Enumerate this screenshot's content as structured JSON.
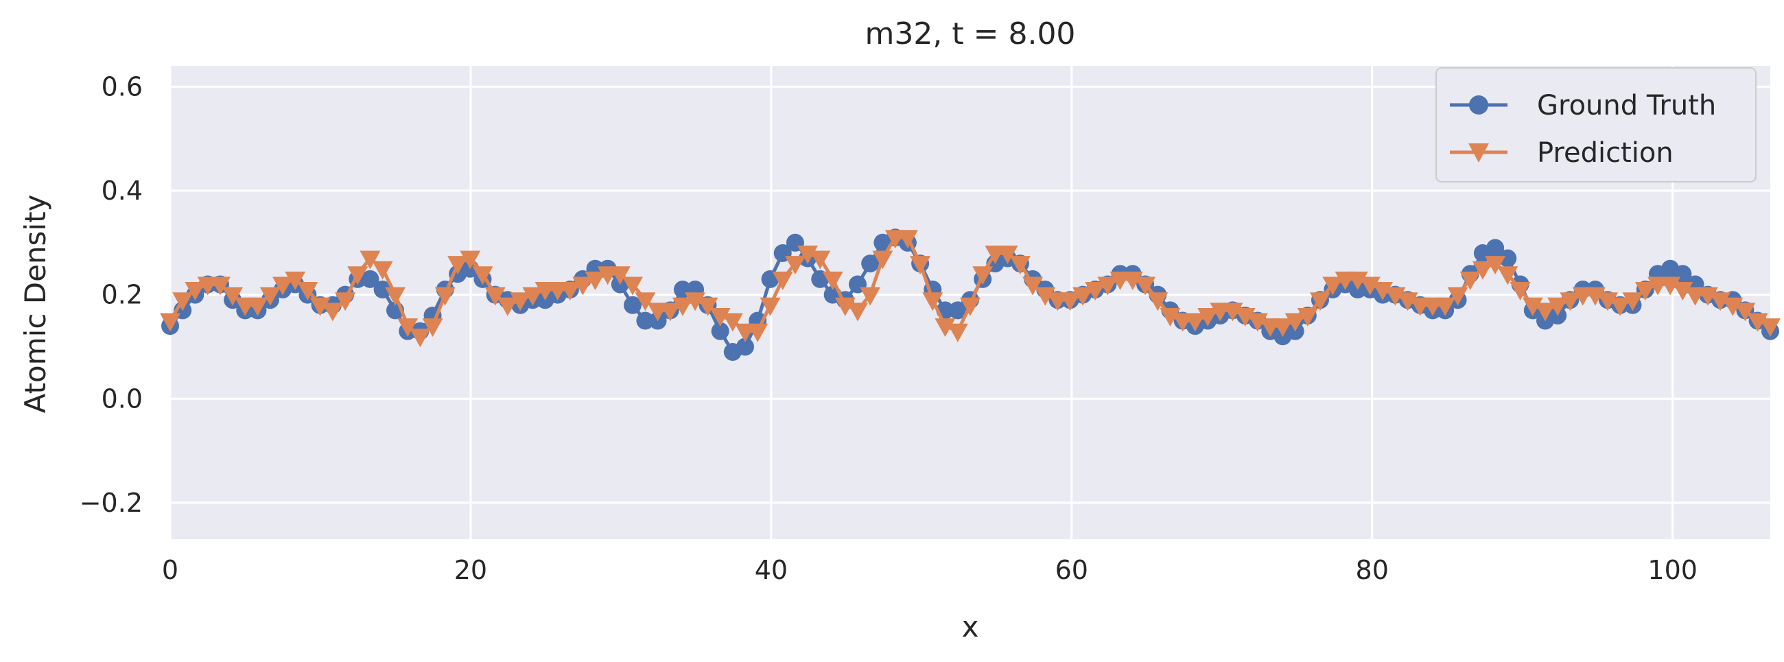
{
  "chart_data": {
    "type": "line",
    "title": "m32, t = 8.00",
    "xlabel": "x",
    "ylabel": "Atomic Density",
    "xlim": [
      0,
      106.5
    ],
    "ylim": [
      -0.27,
      0.64
    ],
    "xticks": [
      0,
      20,
      40,
      60,
      80,
      100
    ],
    "xtick_labels": [
      "0",
      "20",
      "40",
      "60",
      "80",
      "100"
    ],
    "yticks": [
      -0.2,
      0.0,
      0.2,
      0.4,
      0.6
    ],
    "ytick_labels": [
      "−0.2",
      "0.0",
      "0.2",
      "0.4",
      "0.6"
    ],
    "grid": true,
    "legend_position": "top-right",
    "x": [
      0,
      0.83,
      1.66,
      2.5,
      3.33,
      4.16,
      4.99,
      5.82,
      6.66,
      7.49,
      8.32,
      9.15,
      9.98,
      10.82,
      11.65,
      12.48,
      13.31,
      14.14,
      14.98,
      15.81,
      16.64,
      17.47,
      18.3,
      19.14,
      19.97,
      20.8,
      21.63,
      22.46,
      23.3,
      24.13,
      24.96,
      25.79,
      26.62,
      27.46,
      28.29,
      29.12,
      29.95,
      30.78,
      31.62,
      32.45,
      33.28,
      34.11,
      34.94,
      35.78,
      36.61,
      37.44,
      38.27,
      39.1,
      39.94,
      40.77,
      41.6,
      42.43,
      43.26,
      44.1,
      44.93,
      45.76,
      46.59,
      47.42,
      48.26,
      49.09,
      49.92,
      50.75,
      51.58,
      52.42,
      53.25,
      54.08,
      54.91,
      55.74,
      56.58,
      57.41,
      58.24,
      59.07,
      59.9,
      60.74,
      61.57,
      62.4,
      63.23,
      64.06,
      64.9,
      65.73,
      66.56,
      67.39,
      68.22,
      69.06,
      69.89,
      70.72,
      71.55,
      72.38,
      73.22,
      74.05,
      74.88,
      75.71,
      76.54,
      77.38,
      78.21,
      79.04,
      79.87,
      80.7,
      81.54,
      82.37,
      83.2,
      84.03,
      84.86,
      85.7,
      86.53,
      87.36,
      88.19,
      89.02,
      89.86,
      90.69,
      91.52,
      92.35,
      93.18,
      94.02,
      94.85,
      95.68,
      96.51,
      97.34,
      98.18,
      99.01,
      99.84,
      100.67,
      101.5,
      102.34,
      103.17,
      104,
      104.83,
      105.66,
      106.5
    ],
    "series": [
      {
        "name": "Ground Truth",
        "color": "#4c72b0",
        "marker": "circle",
        "values": [
          0.14,
          0.17,
          0.2,
          0.22,
          0.22,
          0.19,
          0.17,
          0.17,
          0.19,
          0.21,
          0.22,
          0.2,
          0.18,
          0.18,
          0.2,
          0.23,
          0.23,
          0.21,
          0.17,
          0.13,
          0.13,
          0.16,
          0.21,
          0.24,
          0.25,
          0.23,
          0.2,
          0.19,
          0.18,
          0.19,
          0.19,
          0.2,
          0.21,
          0.23,
          0.25,
          0.25,
          0.22,
          0.18,
          0.15,
          0.15,
          0.17,
          0.21,
          0.21,
          0.18,
          0.13,
          0.09,
          0.1,
          0.15,
          0.23,
          0.28,
          0.3,
          0.27,
          0.23,
          0.2,
          0.19,
          0.22,
          0.26,
          0.3,
          0.31,
          0.3,
          0.26,
          0.21,
          0.17,
          0.17,
          0.19,
          0.23,
          0.26,
          0.27,
          0.26,
          0.23,
          0.21,
          0.19,
          0.19,
          0.2,
          0.21,
          0.22,
          0.24,
          0.24,
          0.22,
          0.2,
          0.17,
          0.15,
          0.14,
          0.15,
          0.16,
          0.17,
          0.16,
          0.15,
          0.13,
          0.12,
          0.13,
          0.16,
          0.19,
          0.21,
          0.22,
          0.21,
          0.21,
          0.2,
          0.2,
          0.19,
          0.18,
          0.17,
          0.17,
          0.19,
          0.24,
          0.28,
          0.29,
          0.27,
          0.22,
          0.17,
          0.15,
          0.16,
          0.19,
          0.21,
          0.21,
          0.19,
          0.18,
          0.18,
          0.21,
          0.24,
          0.25,
          0.24,
          0.22,
          0.2,
          0.19,
          0.19,
          0.17,
          0.15,
          0.13
        ]
      },
      {
        "name": "Prediction",
        "color": "#dd8452",
        "marker": "triangle-down",
        "values": [
          0.15,
          0.19,
          0.21,
          0.22,
          0.22,
          0.2,
          0.18,
          0.18,
          0.2,
          0.22,
          0.23,
          0.21,
          0.18,
          0.17,
          0.19,
          0.24,
          0.27,
          0.25,
          0.2,
          0.14,
          0.12,
          0.14,
          0.2,
          0.26,
          0.27,
          0.24,
          0.2,
          0.18,
          0.19,
          0.2,
          0.21,
          0.21,
          0.21,
          0.22,
          0.23,
          0.24,
          0.24,
          0.22,
          0.19,
          0.17,
          0.17,
          0.18,
          0.19,
          0.18,
          0.16,
          0.15,
          0.13,
          0.13,
          0.18,
          0.23,
          0.26,
          0.28,
          0.27,
          0.23,
          0.18,
          0.17,
          0.2,
          0.27,
          0.31,
          0.31,
          0.26,
          0.19,
          0.14,
          0.13,
          0.18,
          0.24,
          0.28,
          0.28,
          0.26,
          0.22,
          0.2,
          0.19,
          0.19,
          0.2,
          0.21,
          0.22,
          0.23,
          0.23,
          0.22,
          0.19,
          0.16,
          0.15,
          0.15,
          0.16,
          0.17,
          0.17,
          0.16,
          0.15,
          0.14,
          0.14,
          0.15,
          0.16,
          0.19,
          0.22,
          0.23,
          0.23,
          0.22,
          0.21,
          0.2,
          0.19,
          0.18,
          0.18,
          0.18,
          0.2,
          0.23,
          0.25,
          0.26,
          0.24,
          0.21,
          0.18,
          0.17,
          0.18,
          0.19,
          0.2,
          0.2,
          0.19,
          0.18,
          0.19,
          0.21,
          0.22,
          0.22,
          0.21,
          0.2,
          0.2,
          0.19,
          0.18,
          0.17,
          0.15,
          0.14
        ]
      }
    ]
  }
}
